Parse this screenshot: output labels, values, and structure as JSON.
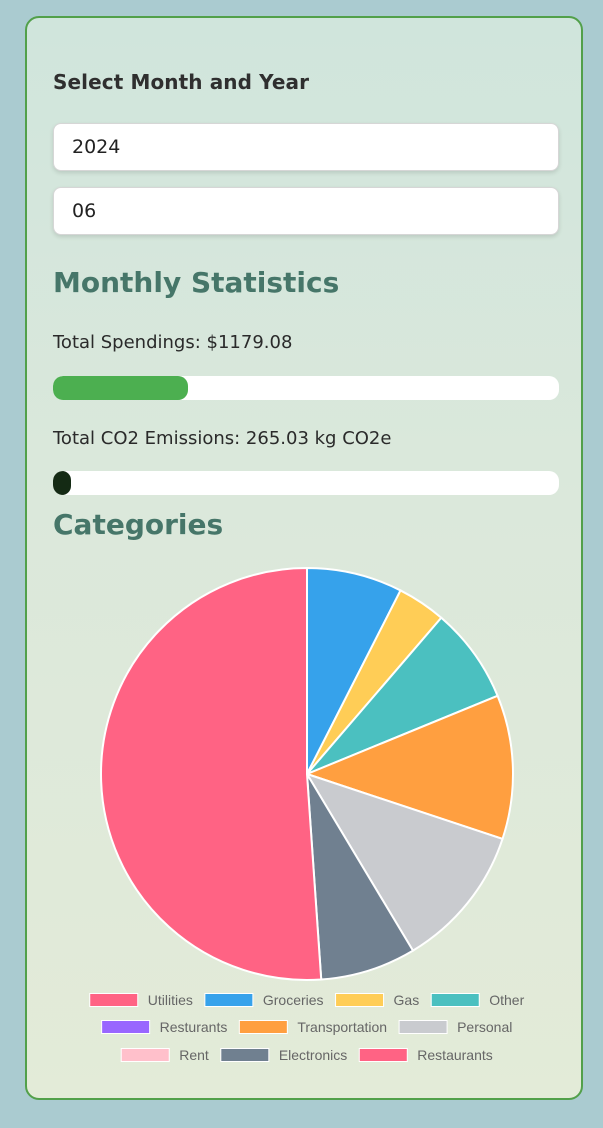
{
  "form": {
    "heading": "Select Month and Year",
    "year_value": "2024",
    "month_value": "06"
  },
  "stats": {
    "heading": "Monthly Statistics",
    "spendings_label": "Total Spendings: $1179.08",
    "spendings_progress": 0.267,
    "spendings_color": "#4caf50",
    "co2_label": "Total CO2 Emissions: 265.03 kg CO2e",
    "co2_progress": 0.035,
    "co2_color": "#142a14"
  },
  "categories": {
    "heading": "Categories"
  },
  "chart_data": {
    "type": "pie",
    "categories": [
      "Utilities",
      "Groceries",
      "Gas",
      "Other",
      "Resturants",
      "Transportation",
      "Personal",
      "Rent",
      "Electronics",
      "Restaurants"
    ],
    "values": [
      0,
      7.5,
      3.8,
      7.5,
      0,
      11.3,
      11.3,
      0,
      7.5,
      51.1
    ],
    "colors": [
      "#ff6384",
      "#36a2eb",
      "#ffcd56",
      "#4bc0c0",
      "#9966ff",
      "#ff9f40",
      "#c9cbcf",
      "#ffc0cb",
      "#708090",
      "#ff6384"
    ],
    "legend_position": "bottom"
  }
}
